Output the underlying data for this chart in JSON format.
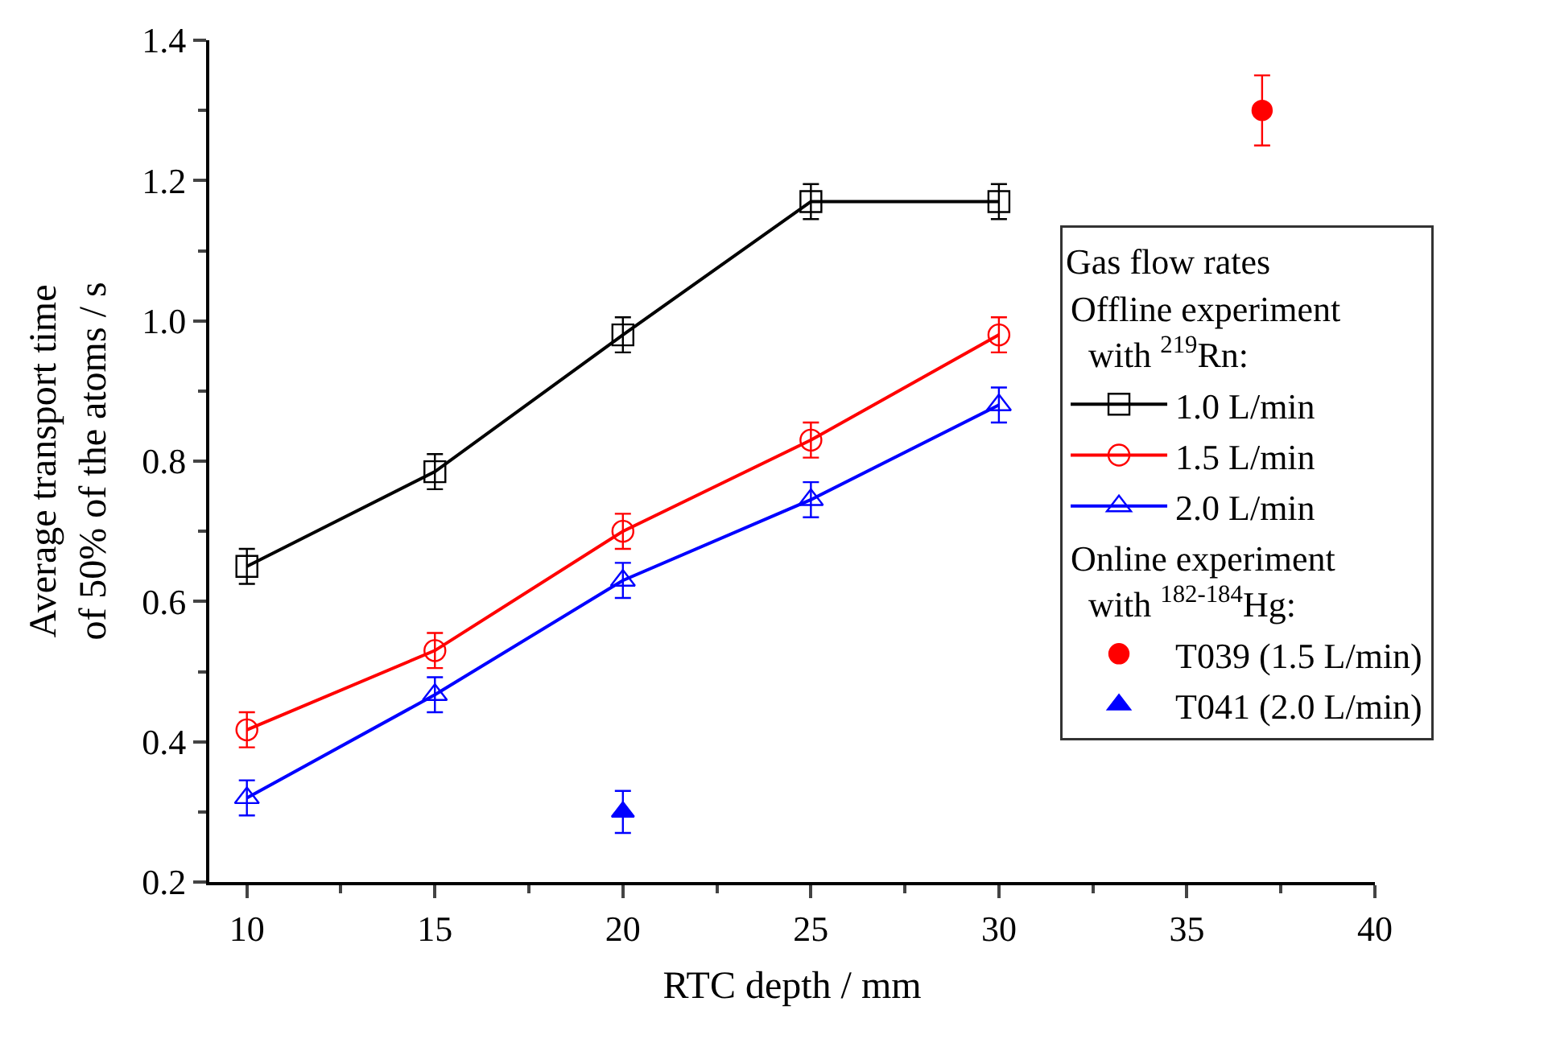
{
  "chart_data": {
    "type": "line",
    "xlabel": "RTC depth / mm",
    "ylabel": "Average transport time of 50% of the atoms / s",
    "legend_title": "Gas flow rates",
    "annotations": [
      "Offline experiment with $^{219}$Rn:",
      "Online experiment with $^{182-184}$Hg:"
    ],
    "x": [
      10,
      15,
      20,
      25,
      30
    ],
    "series": [
      {
        "name": "1.0 L/min",
        "color": "#000000",
        "marker": "square",
        "values": [
          0.65,
          0.785,
          0.98,
          1.17,
          1.17
        ],
        "errors": [
          0.025,
          0.025,
          0.025,
          0.025,
          0.025
        ]
      },
      {
        "name": "1.5 L/min",
        "color": "#ff0000",
        "marker": "circle",
        "values": [
          0.417,
          0.53,
          0.7,
          0.83,
          0.98
        ],
        "errors": [
          0.025,
          0.025,
          0.025,
          0.025,
          0.025
        ]
      },
      {
        "name": "2.0 L/min",
        "color": "#0000ff",
        "marker": "triangle",
        "values": [
          0.32,
          0.467,
          0.63,
          0.745,
          0.88
        ],
        "errors": [
          0.025,
          0.025,
          0.025,
          0.025,
          0.025
        ]
      },
      {
        "name": "T039 (1.5 L/min)",
        "type": "scatter",
        "color": "#ff0000",
        "marker": "circle",
        "x": [
          37
        ],
        "values": [
          1.3
        ],
        "errors": [
          0.05
        ]
      },
      {
        "name": "T041 (2.0 L/min)",
        "type": "scatter",
        "color": "#0000ff",
        "marker": "triangle",
        "x": [
          20
        ],
        "values": [
          0.3
        ],
        "errors": [
          0.03
        ]
      }
    ],
    "xlim": [
      9,
      40
    ],
    "xticks": [
      10,
      15,
      20,
      25,
      30,
      35,
      40
    ],
    "ylim": [
      0.2,
      1.4
    ],
    "yticks": [
      0.2,
      0.4,
      0.6,
      0.8,
      {
        "value": 1,
        "label": "1.0"
      },
      1.2,
      1.4
    ],
    "legend": "right"
  }
}
